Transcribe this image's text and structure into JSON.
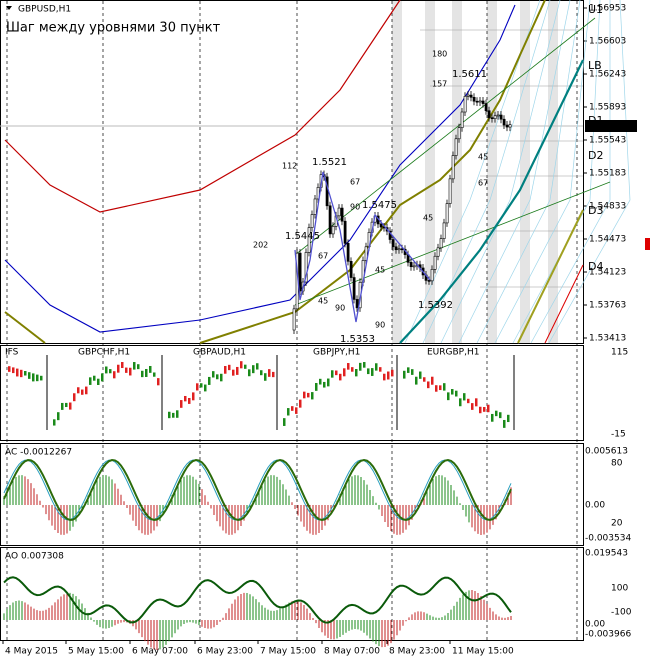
{
  "main": {
    "symbol": "GBPUSD,H1",
    "note": "Шаг между уровнями 30 пункт",
    "price_labels": [
      "1.56953",
      "1.56603",
      "1.56243",
      "1.55893",
      "1.55543",
      "1.55183",
      "1.54833",
      "1.54473",
      "1.54123",
      "1.53763",
      "1.53413"
    ],
    "current_price": "1.55696",
    "levels": [
      "U1",
      "LB",
      "D1",
      "D2",
      "D3",
      "D4"
    ],
    "annotations": [
      "1.5611",
      "1.5521",
      "1.5475",
      "1.5445",
      "1.5392",
      "1.5353",
      "180",
      "157",
      "112",
      "67",
      "90",
      "202",
      "67",
      "45",
      "90",
      "45",
      "45",
      "90",
      "45",
      "67"
    ]
  },
  "panels": [
    {
      "labels": [
        "IFS",
        "GBPCHF,H1",
        "GBPAUD,H1",
        "GBPJPY,H1",
        "EURGBP,H1"
      ],
      "scale": [
        "115",
        "-15"
      ]
    },
    {
      "labels": [
        "AC -0.0012267"
      ],
      "scale": [
        "0.005613",
        "80",
        "0.00",
        "20",
        "-0.003534"
      ]
    },
    {
      "labels": [
        "AO 0.007308"
      ],
      "scale": [
        "0.019543",
        "100",
        "-100",
        "0.00",
        "-0.003966"
      ]
    }
  ],
  "time_axis": [
    "4 May 2015",
    "5 May 15:00",
    "6 May 07:00",
    "6 May 23:00",
    "7 May 15:00",
    "8 May 07:00",
    "8 May 23:00",
    "11 May 15:00"
  ]
}
